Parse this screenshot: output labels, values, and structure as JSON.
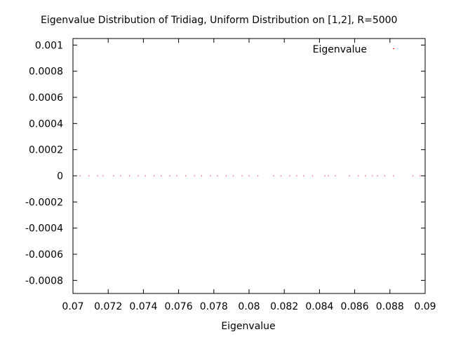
{
  "chart_data": {
    "type": "scatter",
    "title": "Eigenvalue Distribution of Tridiag, Uniform Distribution on [1,2], R=5000",
    "xlabel": "Eigenvalue",
    "ylabel": "",
    "xlim": [
      0.07,
      0.09
    ],
    "ylim": [
      -0.0009,
      0.00105
    ],
    "x_ticks": [
      "0.07",
      "0.072",
      "0.074",
      "0.076",
      "0.078",
      "0.08",
      "0.082",
      "0.084",
      "0.086",
      "0.088",
      "0.09"
    ],
    "x_tick_values": [
      0.07,
      0.072,
      0.074,
      0.076,
      0.078,
      0.08,
      0.082,
      0.084,
      0.086,
      0.088,
      0.09
    ],
    "y_ticks": [
      "0.001",
      "0.0008",
      "0.0006",
      "0.0004",
      "0.0002",
      "0",
      "-0.0002",
      "-0.0004",
      "-0.0006",
      "-0.0008"
    ],
    "y_tick_values": [
      0.001,
      0.0008,
      0.0006,
      0.0004,
      0.0002,
      0,
      -0.0002,
      -0.0004,
      -0.0006,
      -0.0008
    ],
    "grid": false,
    "legend_position": "top-right",
    "series": [
      {
        "name": "Eigenvalue",
        "color": "#ff0000",
        "marker": "dot",
        "x": [
          0.0704,
          0.0709,
          0.0714,
          0.0717,
          0.0723,
          0.0727,
          0.0732,
          0.0737,
          0.0741,
          0.0746,
          0.075,
          0.0755,
          0.0759,
          0.0764,
          0.0769,
          0.0773,
          0.0778,
          0.0782,
          0.0787,
          0.0791,
          0.0796,
          0.08,
          0.0805,
          0.0814,
          0.0818,
          0.0823,
          0.0827,
          0.0831,
          0.0836,
          0.0843,
          0.0845,
          0.0849,
          0.0857,
          0.0862,
          0.0866,
          0.087,
          0.0873,
          0.0877,
          0.0882,
          0.0893,
          0.0897
        ],
        "y": [
          0,
          0,
          0,
          0,
          0,
          0,
          0,
          0,
          0,
          0,
          0,
          0,
          0,
          0,
          0,
          0,
          0,
          0,
          0,
          0,
          0,
          0,
          0,
          0,
          0,
          0,
          0,
          0,
          0,
          0,
          0,
          0,
          0,
          0,
          0,
          0,
          0,
          0,
          0,
          0,
          0
        ]
      }
    ]
  }
}
